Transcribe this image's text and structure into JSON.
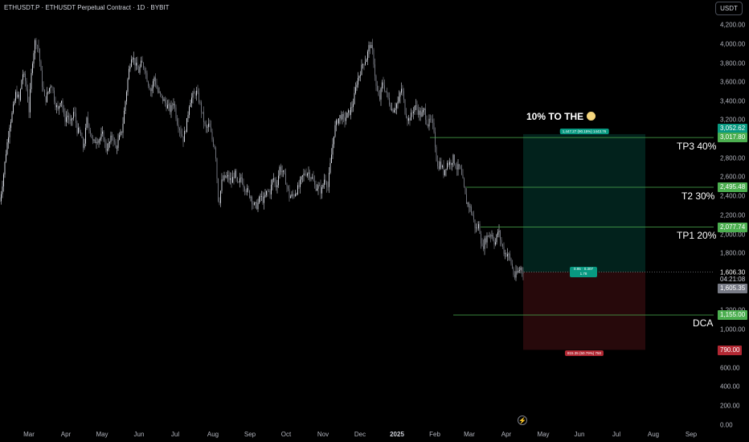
{
  "header": {
    "symbol_line": "ETHUSDT.P · ETHUSDT Perpetual Contract · 1D · BYBIT",
    "currency_button": "USDT"
  },
  "price_scale": {
    "ticks": [
      "4,200.00",
      "4,000.00",
      "3,800.00",
      "3,600.00",
      "3,400.00",
      "3,200.00",
      "3,000.00",
      "2,800.00",
      "2,600.00",
      "2,400.00",
      "2,200.00",
      "2,000.00",
      "1,800.00",
      "1,200.00",
      "1,000.00",
      "800.00",
      "600.00",
      "400.00",
      "200.00",
      "0.00"
    ],
    "last_price": "1,606.30",
    "countdown": "04:21:08",
    "labels": {
      "tp3_target": "3,052.62",
      "tp3": "3,017.80",
      "t2": "2,495.48",
      "tp1": "2,077.74",
      "gray": "1,605.35",
      "dca": "1,155.00",
      "stop": "790.00"
    }
  },
  "time_axis": [
    "Mar",
    "Apr",
    "May",
    "Jun",
    "Jul",
    "Aug",
    "Sep",
    "Oct",
    "Nov",
    "Dec",
    "2025",
    "Feb",
    "Mar",
    "Apr",
    "May",
    "Jun",
    "Jul",
    "Aug",
    "Sep"
  ],
  "annotations": {
    "headline": "10% TO THE",
    "tp3": "TP3 40%",
    "t2": "T2 30%",
    "tp1": "TP1 20%",
    "dca": "DCA"
  },
  "position_tool": {
    "target_badge": "1,447.27 (90.15%) 1443.76",
    "stop_badge": "815.35 (50.79%) 750",
    "entry_line1": "0.95 · 0.307",
    "entry_line2": "1.78"
  },
  "colors": {
    "up": "#089981",
    "down": "#b22833",
    "candle": "#d1d4dc",
    "level": "#4caf50"
  },
  "chart_data": {
    "type": "candlestick",
    "symbol": "ETHUSDT.P",
    "interval": "1D",
    "ylim": [
      0,
      4300
    ],
    "close_path": [
      [
        0,
        2350
      ],
      [
        4,
        2600
      ],
      [
        8,
        2900
      ],
      [
        12,
        3150
      ],
      [
        16,
        3300
      ],
      [
        20,
        3500
      ],
      [
        24,
        3400
      ],
      [
        28,
        3700
      ],
      [
        32,
        3600
      ],
      [
        36,
        3300
      ],
      [
        40,
        3800
      ],
      [
        44,
        4050
      ],
      [
        48,
        3950
      ],
      [
        52,
        3600
      ],
      [
        56,
        3400
      ],
      [
        60,
        3500
      ],
      [
        64,
        3600
      ],
      [
        68,
        3400
      ],
      [
        72,
        3300
      ],
      [
        76,
        3450
      ],
      [
        80,
        3200
      ],
      [
        84,
        3250
      ],
      [
        88,
        3150
      ],
      [
        92,
        3300
      ],
      [
        96,
        3100
      ],
      [
        100,
        3050
      ],
      [
        104,
        2900
      ],
      [
        108,
        3200
      ],
      [
        112,
        3100
      ],
      [
        116,
        2950
      ],
      [
        120,
        3000
      ],
      [
        124,
        3000
      ],
      [
        128,
        3050
      ],
      [
        132,
        2900
      ],
      [
        136,
        2950
      ],
      [
        140,
        3050
      ],
      [
        144,
        2900
      ],
      [
        148,
        3000
      ],
      [
        152,
        3100
      ],
      [
        156,
        3400
      ],
      [
        160,
        3700
      ],
      [
        164,
        3900
      ],
      [
        168,
        3800
      ],
      [
        172,
        3700
      ],
      [
        176,
        3800
      ],
      [
        180,
        3750
      ],
      [
        184,
        3600
      ],
      [
        188,
        3500
      ],
      [
        192,
        3650
      ],
      [
        196,
        3500
      ],
      [
        200,
        3450
      ],
      [
        204,
        3400
      ],
      [
        208,
        3350
      ],
      [
        212,
        3300
      ],
      [
        216,
        3400
      ],
      [
        220,
        3200
      ],
      [
        224,
        3100
      ],
      [
        228,
        3000
      ],
      [
        232,
        3150
      ],
      [
        236,
        3400
      ],
      [
        240,
        3450
      ],
      [
        244,
        3500
      ],
      [
        248,
        3400
      ],
      [
        252,
        3250
      ],
      [
        256,
        3100
      ],
      [
        260,
        3150
      ],
      [
        264,
        3000
      ],
      [
        268,
        2900
      ],
      [
        272,
        2300
      ],
      [
        276,
        2550
      ],
      [
        280,
        2600
      ],
      [
        284,
        2600
      ],
      [
        288,
        2550
      ],
      [
        292,
        2650
      ],
      [
        296,
        2500
      ],
      [
        300,
        2600
      ],
      [
        304,
        2500
      ],
      [
        308,
        2450
      ],
      [
        312,
        2400
      ],
      [
        316,
        2300
      ],
      [
        320,
        2300
      ],
      [
        324,
        2400
      ],
      [
        328,
        2350
      ],
      [
        332,
        2450
      ],
      [
        336,
        2450
      ],
      [
        340,
        2600
      ],
      [
        344,
        2500
      ],
      [
        348,
        2700
      ],
      [
        352,
        2650
      ],
      [
        356,
        2550
      ],
      [
        360,
        2400
      ],
      [
        364,
        2400
      ],
      [
        368,
        2450
      ],
      [
        372,
        2500
      ],
      [
        376,
        2600
      ],
      [
        380,
        2650
      ],
      [
        384,
        2650
      ],
      [
        388,
        2600
      ],
      [
        392,
        2500
      ],
      [
        396,
        2500
      ],
      [
        400,
        2450
      ],
      [
        404,
        2600
      ],
      [
        408,
        2500
      ],
      [
        412,
        2800
      ],
      [
        416,
        3100
      ],
      [
        420,
        3200
      ],
      [
        424,
        3250
      ],
      [
        428,
        3200
      ],
      [
        432,
        3250
      ],
      [
        436,
        3300
      ],
      [
        440,
        3400
      ],
      [
        444,
        3600
      ],
      [
        448,
        3700
      ],
      [
        452,
        3800
      ],
      [
        456,
        3850
      ],
      [
        460,
        4000
      ],
      [
        464,
        3900
      ],
      [
        468,
        3550
      ],
      [
        472,
        3400
      ],
      [
        476,
        3600
      ],
      [
        480,
        3500
      ],
      [
        484,
        3400
      ],
      [
        488,
        3300
      ],
      [
        492,
        3350
      ],
      [
        496,
        3400
      ],
      [
        500,
        3550
      ],
      [
        504,
        3300
      ],
      [
        508,
        3200
      ],
      [
        512,
        3250
      ],
      [
        516,
        3350
      ],
      [
        520,
        3300
      ],
      [
        524,
        3250
      ],
      [
        528,
        3300
      ],
      [
        532,
        3150
      ],
      [
        536,
        3200
      ],
      [
        540,
        3100
      ],
      [
        544,
        2700
      ],
      [
        548,
        2750
      ],
      [
        552,
        2650
      ],
      [
        556,
        2750
      ],
      [
        560,
        2750
      ],
      [
        564,
        2800
      ],
      [
        568,
        2700
      ],
      [
        572,
        2700
      ],
      [
        576,
        2550
      ],
      [
        580,
        2350
      ],
      [
        584,
        2300
      ],
      [
        588,
        2200
      ],
      [
        592,
        2050
      ],
      [
        596,
        2100
      ],
      [
        600,
        1850
      ],
      [
        604,
        1950
      ],
      [
        608,
        2000
      ],
      [
        612,
        2000
      ],
      [
        616,
        1900
      ],
      [
        620,
        2050
      ],
      [
        624,
        1900
      ],
      [
        628,
        1800
      ],
      [
        632,
        1800
      ],
      [
        636,
        1700
      ],
      [
        640,
        1550
      ],
      [
        644,
        1600
      ],
      [
        648,
        1650
      ],
      [
        652,
        1606
      ]
    ],
    "levels": [
      {
        "name": "TP3 40%",
        "price": 3017.8
      },
      {
        "name": "T2 30%",
        "price": 2495.48
      },
      {
        "name": "TP1 20%",
        "price": 2077.74
      },
      {
        "name": "DCA",
        "price": 1155.0
      }
    ],
    "position": {
      "entry": 1606.3,
      "target": 3052.62,
      "stop": 790.0,
      "x_start": 651,
      "x_end": 803
    }
  }
}
